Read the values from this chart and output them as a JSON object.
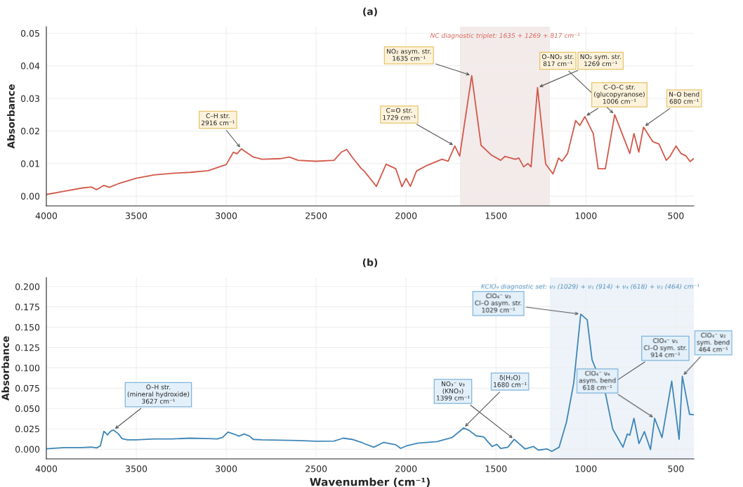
{
  "chart_data": [
    {
      "type": "line",
      "title": "(a)",
      "ylabel": "Absorbance",
      "xlim": [
        4000,
        400
      ],
      "ylim": [
        -0.003,
        0.052
      ],
      "xticks": [
        4000,
        3500,
        3000,
        2500,
        2000,
        1500,
        1000,
        500
      ],
      "yticks": [
        {
          "value": 0,
          "label": "0.00"
        },
        {
          "value": 0.01,
          "label": "0.01"
        },
        {
          "value": 0.02,
          "label": "0.02"
        },
        {
          "value": 0.03,
          "label": "0.03"
        },
        {
          "value": 0.04,
          "label": "0.04"
        },
        {
          "value": 0.05,
          "label": "0.05"
        }
      ],
      "grid": true,
      "series": [
        {
          "color": "#d2594a",
          "x": [
            4000,
            3900,
            3800,
            3750,
            3720,
            3680,
            3650,
            3600,
            3500,
            3400,
            3300,
            3200,
            3100,
            3000,
            2960,
            2940,
            2916,
            2850,
            2800,
            2700,
            2650,
            2600,
            2500,
            2400,
            2360,
            2330,
            2300,
            2250,
            2233,
            2165,
            2111,
            2057,
            2023,
            2000,
            1976,
            1942,
            1881,
            1800,
            1766,
            1729,
            1702,
            1635,
            1583,
            1528,
            1474,
            1450,
            1393,
            1373,
            1346,
            1323,
            1305,
            1269,
            1224,
            1183,
            1152,
            1133,
            1102,
            1057,
            1034,
            1006,
            959,
            932,
            892,
            840,
            817,
            793,
            756,
            733,
            706,
            680,
            628,
            594,
            553,
            533,
            499,
            472,
            445,
            420,
            404,
            400
          ],
          "values": [
            0.0005,
            0.0015,
            0.0025,
            0.0028,
            0.002,
            0.0033,
            0.0027,
            0.0038,
            0.0055,
            0.0065,
            0.007,
            0.0073,
            0.0078,
            0.0097,
            0.0135,
            0.013,
            0.0145,
            0.012,
            0.0113,
            0.0115,
            0.012,
            0.011,
            0.0107,
            0.011,
            0.0135,
            0.0143,
            0.012,
            0.0085,
            0.0077,
            0.003,
            0.0098,
            0.0084,
            0.0029,
            0.0054,
            0.003,
            0.0077,
            0.0095,
            0.0113,
            0.0107,
            0.0154,
            0.0123,
            0.037,
            0.0156,
            0.0127,
            0.011,
            0.0122,
            0.0113,
            0.0117,
            0.009,
            0.01,
            0.009,
            0.0333,
            0.0099,
            0.0068,
            0.0117,
            0.0107,
            0.0131,
            0.0232,
            0.0217,
            0.0244,
            0.0192,
            0.0084,
            0.0084,
            0.025,
            null,
            null,
            0.0131,
            0.0192,
            0.0135,
            0.0212,
            0.0167,
            0.016,
            0.011,
            0.0122,
            0.0154,
            0.0131,
            0.0124,
            0.0106,
            0.0114,
            0.0114
          ]
        }
      ],
      "bands": [
        {
          "axis": "x",
          "from": 1700,
          "to": 1200,
          "label": "NC diagnostic triplet: 1635 + 1269 + 817 cm⁻¹",
          "color": "#f3eaea"
        }
      ],
      "annotations": [
        {
          "text": "C–H str.\n2916 cm⁻¹",
          "x": 2916,
          "y": 0.0145
        },
        {
          "text": "C=O str.\n1729 cm⁻¹",
          "x": 1729,
          "y": 0.0154
        },
        {
          "text": "NO₂ asym. str.\n1635 cm⁻¹",
          "x": 1635,
          "y": 0.037
        },
        {
          "text": "NO₂ sym. str.\n1269 cm⁻¹",
          "x": 1269,
          "y": 0.0333
        },
        {
          "text": "O–NO₂ str.\n817 cm⁻¹",
          "x": 840,
          "y": 0.025
        },
        {
          "text": "C–O–C str.\n(glucopyranose)\n1006 cm⁻¹",
          "x": 1006,
          "y": 0.0244
        },
        {
          "text": "N–O bend\n680 cm⁻¹",
          "x": 680,
          "y": 0.0212
        }
      ]
    },
    {
      "type": "line",
      "title": "(b)",
      "xlabel": "Wavenumber (cm⁻¹)",
      "ylabel": "Absorbance",
      "xlim": [
        4000,
        400
      ],
      "ylim": [
        -0.012,
        0.211
      ],
      "xticks": [
        4000,
        3500,
        3000,
        2500,
        2000,
        1500,
        1000,
        500
      ],
      "yticks": [
        {
          "value": 0,
          "label": "0.000"
        },
        {
          "value": 0.025,
          "label": "0.025"
        },
        {
          "value": 0.05,
          "label": "0.050"
        },
        {
          "value": 0.075,
          "label": "0.075"
        },
        {
          "value": 0.1,
          "label": "0.100"
        },
        {
          "value": 0.125,
          "label": "0.125"
        },
        {
          "value": 0.15,
          "label": "0.150"
        },
        {
          "value": 0.175,
          "label": "0.175"
        },
        {
          "value": 0.2,
          "label": "0.200"
        }
      ],
      "grid": true,
      "series": [
        {
          "color": "#3f86b8",
          "x": [
            4000,
            3900,
            3800,
            3750,
            3720,
            3700,
            3680,
            3660,
            3640,
            3627,
            3600,
            3580,
            3550,
            3500,
            3400,
            3300,
            3200,
            3100,
            3050,
            3020,
            2990,
            2950,
            2930,
            2900,
            2870,
            2850,
            2800,
            2700,
            2600,
            2500,
            2400,
            2350,
            2300,
            2250,
            2233,
            2179,
            2125,
            2057,
            2030,
            2000,
            1935,
            1827,
            1745,
            1680,
            1650,
            1610,
            1569,
            1522,
            1495,
            1474,
            1434,
            1399,
            1339,
            1292,
            1264,
            1217,
            1190,
            1149,
            1108,
            1068,
            1029,
            993,
            966,
            939,
            914,
            892,
            851,
            824,
            794,
            770,
            756,
            733,
            705,
            675,
            641,
            618,
            577,
            523,
            482,
            464,
            424,
            400
          ],
          "values": [
            0.0005,
            0.002,
            0.002,
            0.0025,
            0.0015,
            0.004,
            0.022,
            0.0175,
            0.0225,
            0.0235,
            0.019,
            0.013,
            0.0115,
            0.0115,
            0.0125,
            0.0125,
            0.0135,
            0.013,
            0.0125,
            0.0145,
            0.021,
            0.018,
            0.016,
            0.0185,
            0.016,
            0.012,
            0.0115,
            0.011,
            0.0105,
            0.0098,
            0.01,
            0.0135,
            0.012,
            0.0085,
            0.0068,
            0.0024,
            0.0083,
            0.0053,
            0.001,
            0.0038,
            0.0074,
            0.0092,
            0.0142,
            0.026,
            0.0231,
            0.0163,
            0.0151,
            0.0033,
            0.0059,
            0.0009,
            0.0024,
            0.0121,
            0.0003,
            0.0033,
            -0.0012,
            0.0003,
            -0.0027,
            0.0024,
            0.0334,
            0.081,
            0.166,
            0.159,
            0.11,
            null,
            null,
            0.069,
            0.0246,
            0.0142,
            0.0024,
            0.0186,
            0.0172,
            0.0379,
            0.0068,
            0.0216,
            -0.0006,
            0.0379,
            0.0142,
            0.0837,
            0.0121,
            0.0896,
            0.0429,
            0.0423
          ]
        }
      ],
      "bands": [
        {
          "axis": "x",
          "from": 1200,
          "to": 400,
          "label": "KClO₄ diagnostic set: ν₃ (1029) + ν₁ (914) + ν₄ (618) + ν₂ (464) cm⁻¹",
          "color": "#edf3f9"
        }
      ],
      "annotations": [
        {
          "text": "O–H str.\n(mineral hydroxide)\n3627 cm⁻¹",
          "x": 3627,
          "y": 0.0235
        },
        {
          "text": "NO₃⁻ ν₃\n(KNO₃)\n1399 cm⁻¹",
          "x": 1399,
          "y": 0.0121
        },
        {
          "text": "δ(H₂O)\n1680 cm⁻¹",
          "x": 1680,
          "y": 0.026
        },
        {
          "text": "ClO₄⁻ ν₃\nCl–O asym. str.\n1029 cm⁻¹",
          "x": 1029,
          "y": 0.166
        },
        {
          "text": "ClO₄⁻ ν₁\nCl–O sym. str.\n914 cm⁻¹",
          "x": 914,
          "y": 0.072
        },
        {
          "text": "ClO₄⁻ ν₄\nasym. bend\n618 cm⁻¹",
          "x": 618,
          "y": 0.0379
        },
        {
          "text": "ClO₄⁻ ν₂\nsym. bend\n464 cm⁻¹",
          "x": 464,
          "y": 0.0896
        }
      ]
    }
  ]
}
